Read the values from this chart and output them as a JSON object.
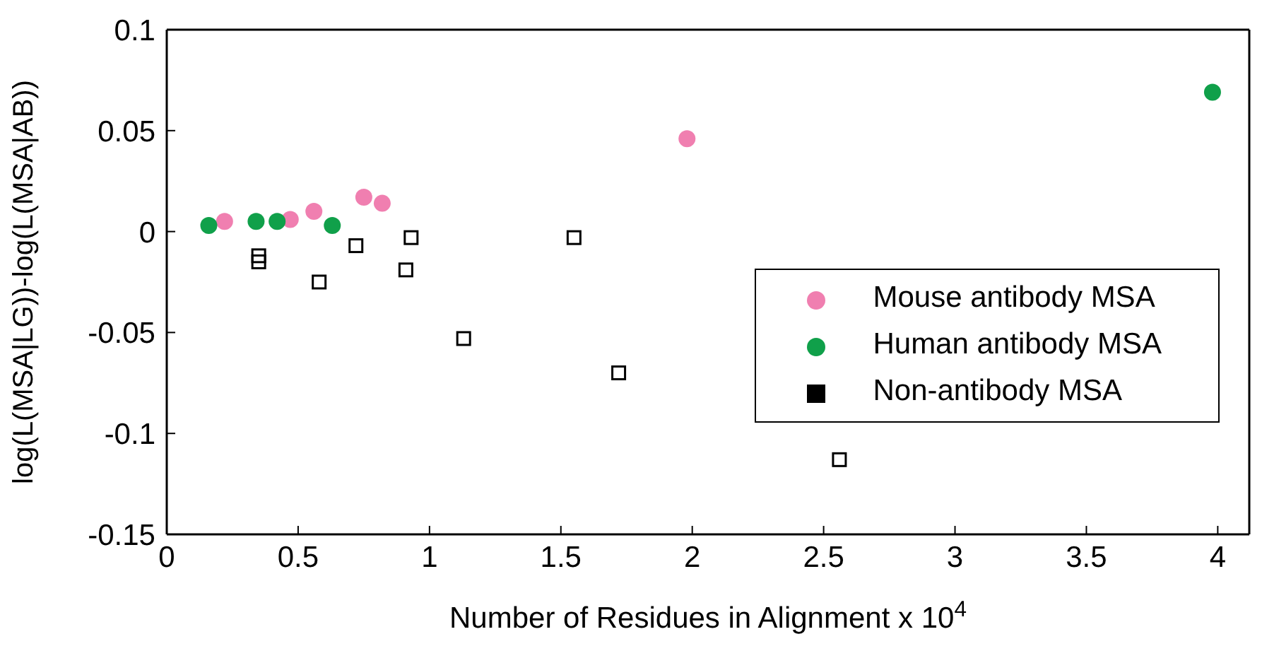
{
  "chart_data": {
    "type": "scatter",
    "xlabel": "Number of Residues in Alignment x 10$^{4}$",
    "ylabel": "log(L(MSA|LG))-log(L(MSA|AB))",
    "xlim": [
      0,
      4.12
    ],
    "xticks": [
      0,
      0.5,
      1,
      1.5,
      2,
      2.5,
      3,
      3.5,
      4
    ],
    "ylim": [
      -0.15,
      0.1
    ],
    "yticks": [
      -0.15,
      -0.1,
      -0.05,
      0,
      0.05,
      0.1
    ],
    "legend": "right",
    "series": [
      {
        "name": "Mouse antibody MSA",
        "color": "#f07fb0",
        "marker": "circle",
        "x": [
          0.22,
          0.47,
          0.56,
          0.75,
          0.82,
          1.98
        ],
        "values": [
          0.005,
          0.006,
          0.01,
          0.017,
          0.014,
          0.046
        ]
      },
      {
        "name": "Human antibody MSA",
        "color": "#10a04a",
        "marker": "circle",
        "x": [
          0.16,
          0.34,
          0.42,
          0.63,
          3.98
        ],
        "values": [
          0.003,
          0.005,
          0.005,
          0.003,
          0.069
        ]
      },
      {
        "name": "Non-antibody MSA",
        "color": "#000000",
        "marker": "square",
        "x": [
          0.35,
          0.35,
          0.58,
          0.72,
          0.93,
          0.91,
          1.55,
          1.13,
          1.72,
          2.56
        ],
        "values": [
          -0.012,
          -0.015,
          -0.025,
          -0.007,
          -0.003,
          -0.019,
          -0.003,
          -0.053,
          -0.07,
          -0.113
        ]
      }
    ]
  }
}
